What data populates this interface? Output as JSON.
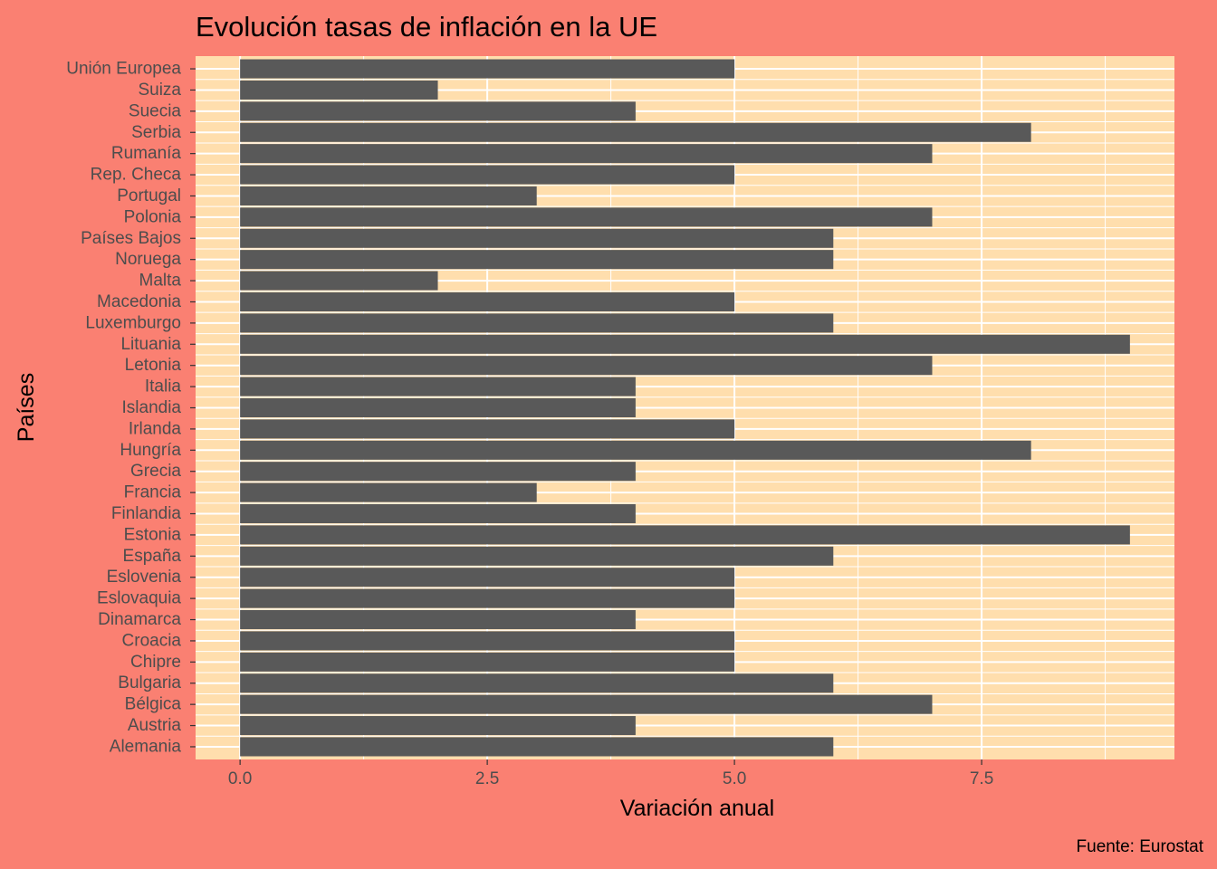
{
  "chart_data": {
    "type": "bar",
    "orientation": "horizontal",
    "title": "Evolución tasas de inflación en la UE",
    "xlabel": "Variación anual",
    "ylabel": "Países",
    "caption": "Fuente: Eurostat",
    "categories": [
      "Alemania",
      "Austria",
      "Bélgica",
      "Bulgaria",
      "Chipre",
      "Croacia",
      "Dinamarca",
      "Eslovaquia",
      "Eslovenia",
      "España",
      "Estonia",
      "Finlandia",
      "Francia",
      "Grecia",
      "Hungría",
      "Irlanda",
      "Islandia",
      "Italia",
      "Letonia",
      "Lituania",
      "Luxemburgo",
      "Macedonia",
      "Malta",
      "Noruega",
      "Países Bajos",
      "Polonia",
      "Portugal",
      "Rep. Checa",
      "Rumanía",
      "Serbia",
      "Suecia",
      "Suiza",
      "Unión Europea"
    ],
    "values": [
      6,
      4,
      7,
      6,
      5,
      5,
      4,
      5,
      5,
      6,
      9,
      4,
      3,
      4,
      8,
      5,
      4,
      4,
      7,
      9,
      6,
      5,
      2,
      6,
      6,
      7,
      3,
      5,
      7,
      8,
      4,
      2,
      5
    ],
    "xlim": [
      -0.45,
      9.45
    ],
    "xticks": [
      0,
      2.5,
      5,
      7.5
    ],
    "xtick_labels": [
      "0.0",
      "2.5",
      "5.0",
      "7.5"
    ],
    "grid": true,
    "colors": {
      "background": "#FA8072",
      "panel": "#FFDEAD",
      "bar": "#595959",
      "grid": "#FFFFFF",
      "tick_text": "#4D4D4D"
    }
  }
}
